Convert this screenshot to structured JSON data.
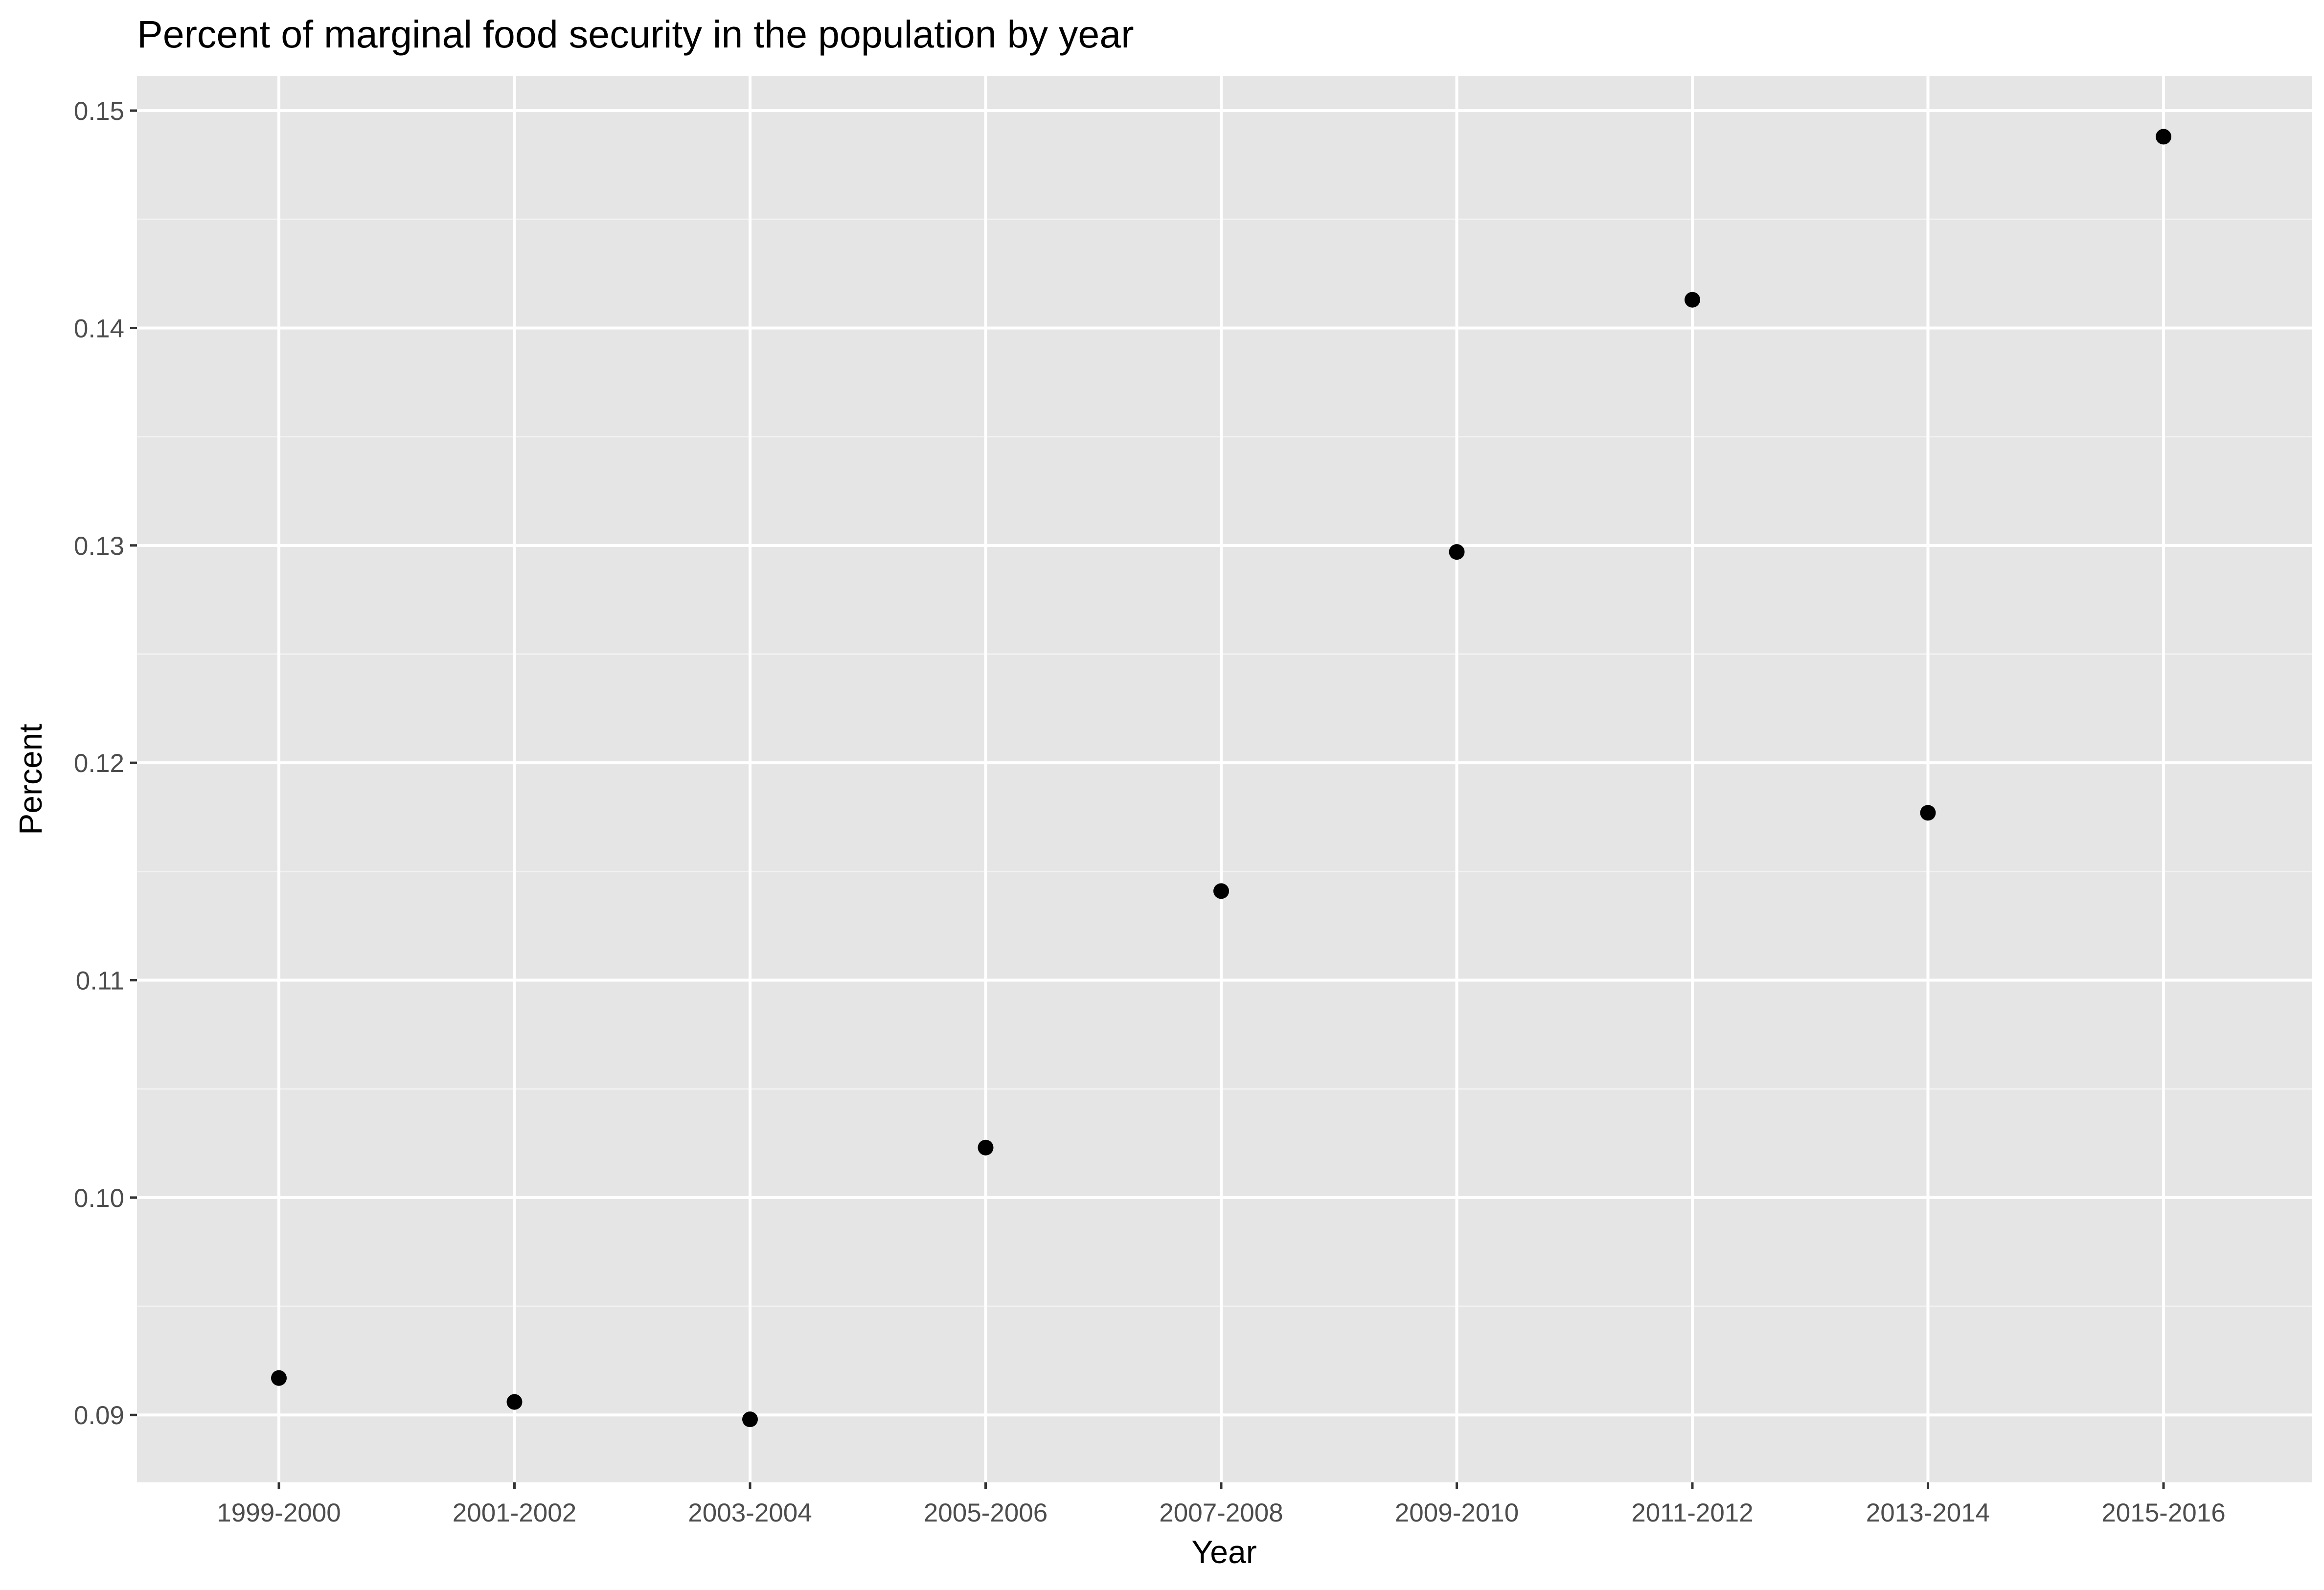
{
  "chart_data": {
    "type": "scatter",
    "title": "Percent of marginal food security in the population by year",
    "xlabel": "Year",
    "ylabel": "Percent",
    "categories": [
      "1999-2000",
      "2001-2002",
      "2003-2004",
      "2005-2006",
      "2007-2008",
      "2009-2010",
      "2011-2012",
      "2013-2014",
      "2015-2016"
    ],
    "values": [
      0.0917,
      0.0906,
      0.0898,
      0.1023,
      0.1141,
      0.1297,
      0.1413,
      0.1177,
      0.1488
    ],
    "yticks": [
      0.09,
      0.1,
      0.11,
      0.12,
      0.13,
      0.14,
      0.15
    ],
    "ytick_labels": [
      "0.09",
      "0.10",
      "0.11",
      "0.12",
      "0.13",
      "0.14",
      "0.15"
    ],
    "ylim": [
      0.0869,
      0.1516
    ],
    "grid": true,
    "legend": "none",
    "colors": {
      "panel_background": "#e5e5e5",
      "grid_major": "#ffffff",
      "grid_minor": "#f2f2f2",
      "point": "#000000",
      "tick_text": "#4d4d4d",
      "tick_mark": "#333333"
    }
  }
}
